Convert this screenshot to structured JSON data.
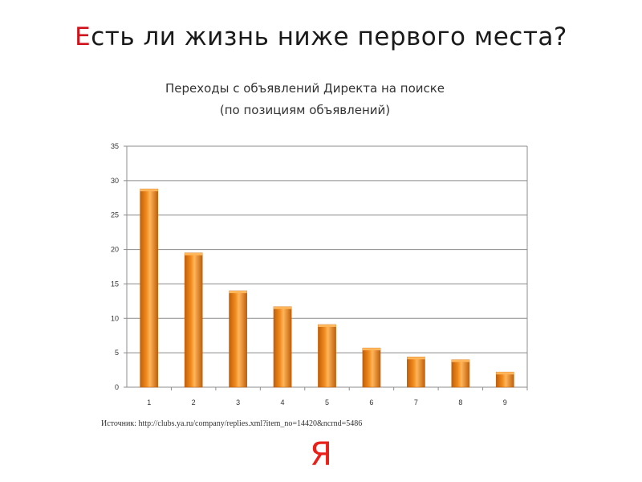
{
  "slide": {
    "title_first_letter": "Е",
    "title_rest": "сть ли жизнь ниже первого места?",
    "source": "Источник: http://clubs.ya.ru/company/replies.xml?item_no=14420&ncrnd=5486",
    "logo_text": "Я"
  },
  "colors": {
    "title_accent": "#d0131b",
    "bar_fill": "#f08a1c",
    "bar_highlight": "#ffb55a",
    "bar_shadow": "#c05f0a",
    "logo": "#e8221a"
  },
  "chart_data": {
    "type": "bar",
    "title": "Переходы с объявлений Директа  на поиске",
    "subtitle": "(по позициям объявлений)",
    "categories": [
      "1",
      "2",
      "3",
      "4",
      "5",
      "6",
      "7",
      "8",
      "9"
    ],
    "values": [
      28.8,
      19.5,
      14.0,
      11.7,
      9.1,
      5.7,
      4.4,
      4.0,
      2.2
    ],
    "yticks": [
      0,
      5,
      10,
      15,
      20,
      25,
      30,
      35
    ],
    "ylim": [
      0,
      35
    ],
    "xlabel": "",
    "ylabel": "",
    "grid": true,
    "legend": "none"
  }
}
